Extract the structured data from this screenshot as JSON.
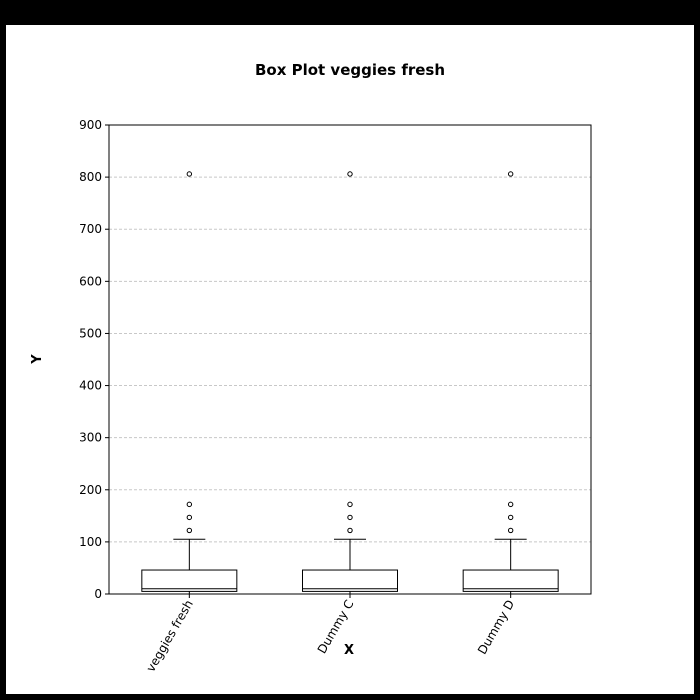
{
  "chart_data": {
    "type": "box",
    "title": "Box Plot veggies fresh",
    "xlabel": "X",
    "ylabel": "Y",
    "ylim": [
      0,
      900
    ],
    "yticks": [
      0,
      100,
      200,
      300,
      400,
      500,
      600,
      700,
      800,
      900
    ],
    "grid": true,
    "categories": [
      "veggies fresh",
      "Dummy C",
      "Dummy D"
    ],
    "boxes": [
      {
        "label": "veggies fresh",
        "q1": 5,
        "median": 10,
        "q3": 46,
        "whisker_low": 0,
        "whisker_high": 105,
        "outliers": [
          122,
          147,
          172,
          806
        ]
      },
      {
        "label": "Dummy C",
        "q1": 5,
        "median": 10,
        "q3": 46,
        "whisker_low": 0,
        "whisker_high": 105,
        "outliers": [
          122,
          147,
          172,
          806
        ]
      },
      {
        "label": "Dummy D",
        "q1": 5,
        "median": 10,
        "q3": 46,
        "whisker_low": 0,
        "whisker_high": 105,
        "outliers": [
          122,
          147,
          172,
          806
        ]
      }
    ]
  }
}
